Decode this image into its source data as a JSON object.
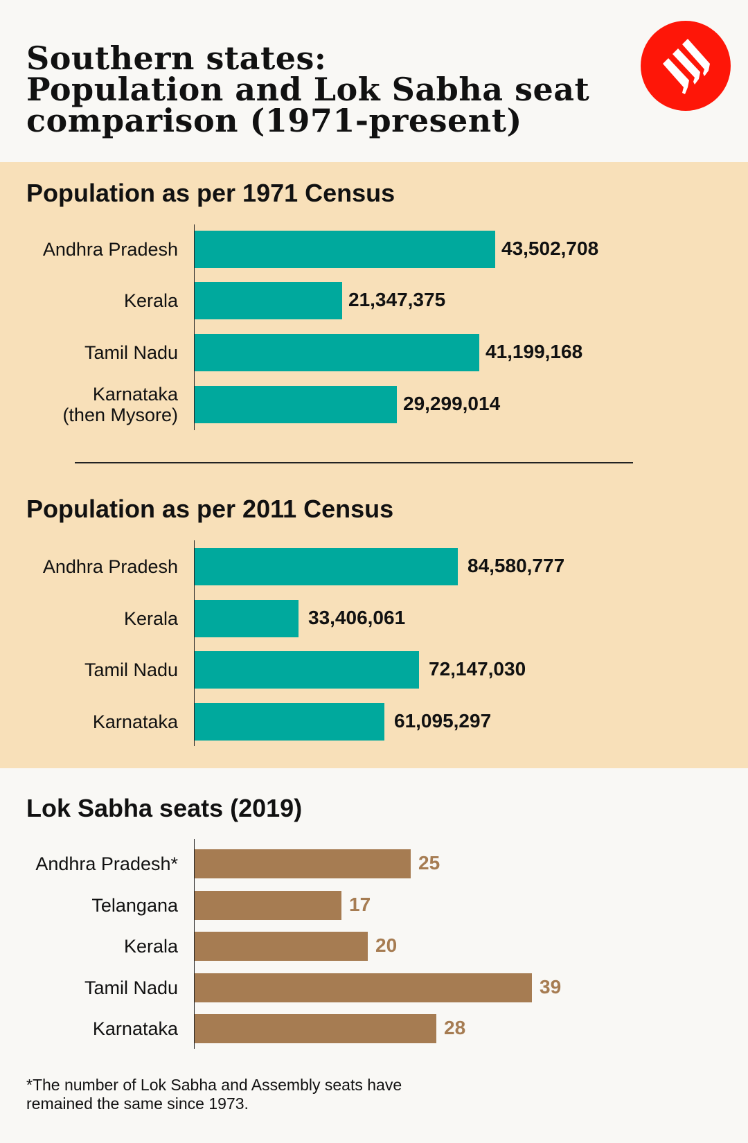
{
  "title": [
    "Southern states:",
    "Population and Lok Sabha seat",
    "comparison (1971-present)"
  ],
  "logo": {
    "icon": "indian-express-logo",
    "color": "#fe1608"
  },
  "colors": {
    "population_bar": "#00a99d",
    "seats_bar": "#a67c52",
    "panel": "#f8e0b9",
    "background": "#f9f8f5"
  },
  "chart_data": [
    {
      "type": "bar",
      "orientation": "horizontal",
      "title": "Population as per 1971 Census",
      "categories": [
        "Andhra Pradesh",
        "Kerala",
        "Tamil Nadu",
        "Karnataka (then Mysore)"
      ],
      "labels": [
        [
          "Andhra Pradesh"
        ],
        [
          "Kerala"
        ],
        [
          "Tamil Nadu"
        ],
        [
          "Karnataka",
          "(then Mysore)"
        ]
      ],
      "values": [
        43502708,
        21347375,
        41199168,
        29299014
      ],
      "value_labels": [
        "43,502,708",
        "21,347,375",
        "41,199,168",
        "29,299,014"
      ],
      "xlim": [
        0,
        60000000
      ]
    },
    {
      "type": "bar",
      "orientation": "horizontal",
      "title": "Population as per 2011 Census",
      "categories": [
        "Andhra Pradesh",
        "Kerala",
        "Tamil Nadu",
        "Karnataka"
      ],
      "labels": [
        [
          "Andhra Pradesh"
        ],
        [
          "Kerala"
        ],
        [
          "Tamil Nadu"
        ],
        [
          "Karnataka"
        ]
      ],
      "values": [
        84580777,
        33406061,
        72147030,
        61095297
      ],
      "value_labels": [
        "84,580,777",
        "33,406,061",
        "72,147,030",
        "61,095,297"
      ],
      "xlim": [
        0,
        130000000
      ]
    },
    {
      "type": "bar",
      "orientation": "horizontal",
      "title": "Lok Sabha seats (2019)",
      "categories": [
        "Andhra Pradesh*",
        "Telangana",
        "Kerala",
        "Tamil Nadu",
        "Karnataka"
      ],
      "labels": [
        [
          "Andhra Pradesh*"
        ],
        [
          "Telangana"
        ],
        [
          "Kerala"
        ],
        [
          "Tamil Nadu"
        ],
        [
          "Karnataka"
        ]
      ],
      "values": [
        25,
        17,
        20,
        39,
        28
      ],
      "value_labels": [
        "25",
        "17",
        "20",
        "39",
        "28"
      ],
      "xlim": [
        0,
        50
      ]
    }
  ],
  "footnote": [
    "*The number of Lok Sabha and Assembly seats have",
    "remained the same since 1973."
  ]
}
